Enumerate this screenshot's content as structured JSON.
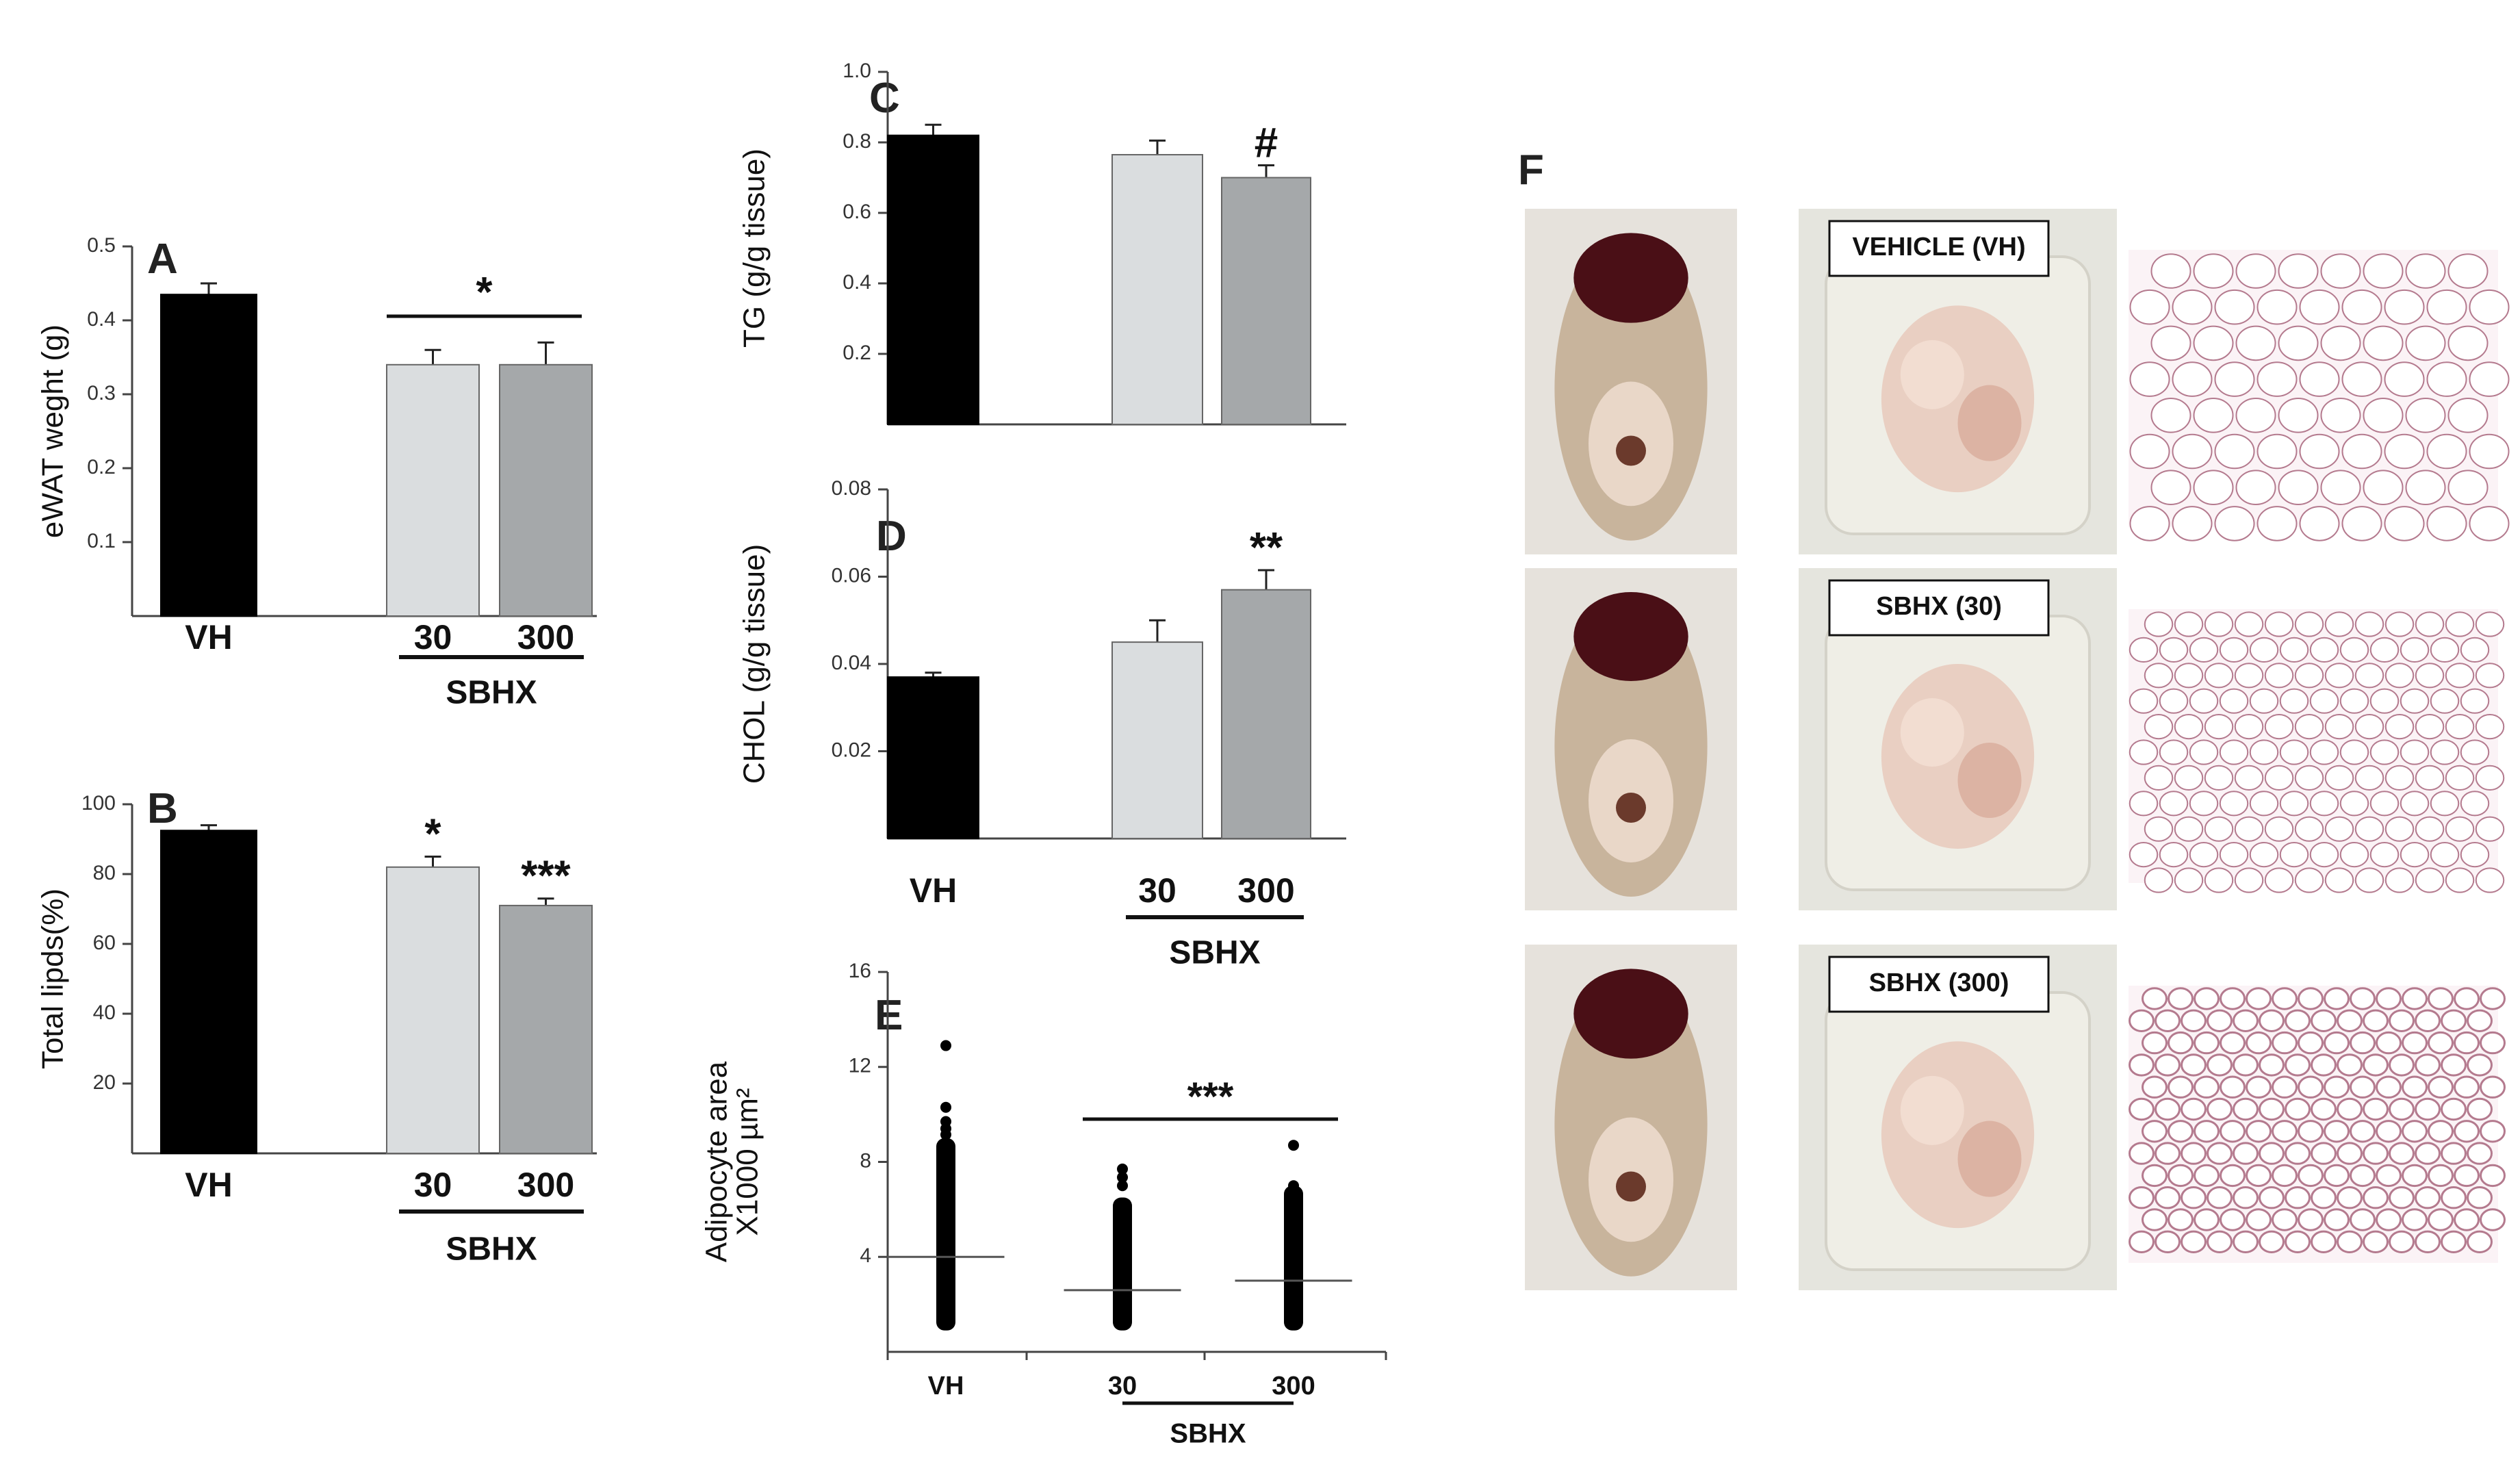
{
  "colors": {
    "vh": "#000000",
    "sbhx30": "#dadddf",
    "sbhx300": "#a5a8aa",
    "axis": "#444444",
    "dot": "#000000",
    "cavity": "#c8b49c",
    "liver": "#4a0f16",
    "fat": "#e9cfc2",
    "tray": "#efeee6",
    "histo_bg": "#fbf3f6",
    "histo_line": "#b47a8e"
  },
  "chart_data": [
    {
      "id": "A",
      "panel_label": "A",
      "type": "bar",
      "ylabel": "eWAT weght (g)",
      "ylim": [
        0,
        0.5
      ],
      "yticks": [
        "0.1",
        "0.2",
        "0.3",
        "0.4",
        "0.5"
      ],
      "categories": [
        "VH",
        "30",
        "300"
      ],
      "values": [
        0.435,
        0.34,
        0.34
      ],
      "errors": [
        0.015,
        0.02,
        0.03
      ],
      "group_label": "SBHX",
      "annotations": [
        {
          "text": "*",
          "span": [
            1,
            2
          ]
        }
      ]
    },
    {
      "id": "B",
      "panel_label": "B",
      "type": "bar",
      "ylabel": "Total lipds(%)",
      "ylim": [
        0,
        100
      ],
      "yticks": [
        "20",
        "40",
        "60",
        "80",
        "100"
      ],
      "categories": [
        "VH",
        "30",
        "300"
      ],
      "values": [
        92.5,
        82,
        71
      ],
      "errors": [
        1.5,
        3,
        2
      ],
      "group_label": "SBHX",
      "annotations": [
        {
          "text": "*",
          "bar": 1
        },
        {
          "text": "***",
          "bar": 2
        }
      ]
    },
    {
      "id": "C",
      "panel_label": "C",
      "type": "bar",
      "ylabel": "TG (g/g tissue)",
      "ylim": [
        0,
        1.0
      ],
      "yticks": [
        "0.2",
        "0.4",
        "0.6",
        "0.8",
        "1.0"
      ],
      "categories": [
        "VH",
        "30",
        "300"
      ],
      "values": [
        0.82,
        0.765,
        0.7
      ],
      "errors": [
        0.03,
        0.04,
        0.035
      ],
      "group_label": "",
      "annotations": [
        {
          "text": "#",
          "bar": 2
        }
      ]
    },
    {
      "id": "D",
      "panel_label": "D",
      "type": "bar",
      "ylabel": "CHOL (g/g tissue)",
      "ylim": [
        0,
        0.08
      ],
      "yticks": [
        "0.02",
        "0.04",
        "0.06",
        "0.08"
      ],
      "categories": [
        "VH",
        "30",
        "300"
      ],
      "values": [
        0.037,
        0.045,
        0.057
      ],
      "errors": [
        0.001,
        0.005,
        0.0045
      ],
      "group_label": "SBHX",
      "annotations": [
        {
          "text": "**",
          "bar": 2
        }
      ]
    },
    {
      "id": "E",
      "panel_label": "E",
      "type": "scatter",
      "ylabel_line1": "Adipocyte area",
      "ylabel_line2": "X1000 µm²",
      "ylim": [
        0,
        16
      ],
      "yticks": [
        "4",
        "8",
        "12",
        "16"
      ],
      "categories": [
        "VH",
        "30",
        "300"
      ],
      "means": [
        4.0,
        2.6,
        3.0
      ],
      "ranges": [
        [
          0.9,
          9.0
        ],
        [
          0.9,
          6.5
        ],
        [
          0.9,
          7.0
        ]
      ],
      "points": [
        [
          12.9,
          10.3,
          9.7,
          9.4,
          9.15
        ],
        [
          7.7,
          7.35,
          7.0
        ],
        [
          8.7,
          7.0
        ]
      ],
      "group_label": "SBHX",
      "annotations": [
        {
          "text": "***",
          "span": [
            1,
            2
          ]
        }
      ]
    }
  ],
  "panelF": {
    "label": "F",
    "rows": [
      {
        "label": "VEHICLE (VH)"
      },
      {
        "label": "SBHX (30)"
      },
      {
        "label": "SBHX (300)"
      }
    ]
  }
}
